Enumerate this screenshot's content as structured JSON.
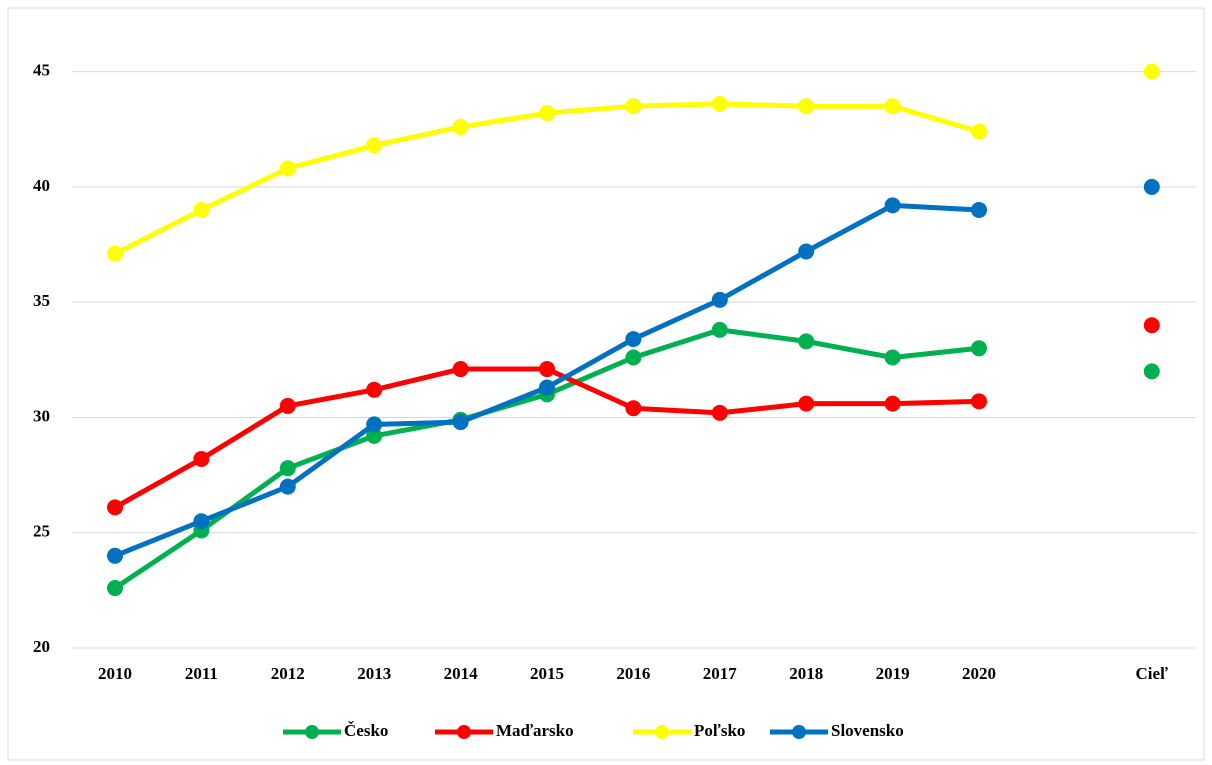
{
  "chart_data": {
    "type": "line",
    "categories": [
      "2010",
      "2011",
      "2012",
      "2013",
      "2014",
      "2015",
      "2016",
      "2017",
      "2018",
      "2019",
      "2020",
      null,
      "Cieľ"
    ],
    "series": [
      {
        "name": "Česko",
        "color": "#00b050",
        "values": [
          22.6,
          25.1,
          27.8,
          29.2,
          29.9,
          31.0,
          32.6,
          33.8,
          33.3,
          32.6,
          33.0,
          null,
          32.0
        ]
      },
      {
        "name": "Maďarsko",
        "color": "#ff0000",
        "values": [
          26.1,
          28.2,
          30.5,
          31.2,
          32.1,
          32.1,
          30.4,
          30.2,
          30.6,
          30.6,
          30.7,
          null,
          34.0
        ]
      },
      {
        "name": "Poľsko",
        "color": "#ffff00",
        "values": [
          37.1,
          39.0,
          40.8,
          41.8,
          42.6,
          43.2,
          43.5,
          43.6,
          43.5,
          43.5,
          42.4,
          null,
          45.0
        ]
      },
      {
        "name": "Slovensko",
        "color": "#0070c0",
        "values": [
          24.0,
          25.5,
          27.0,
          29.7,
          29.8,
          31.3,
          33.4,
          35.1,
          37.2,
          39.2,
          39.0,
          null,
          40.0
        ]
      }
    ],
    "ylim": [
      20,
      47.5
    ],
    "yticks": [
      20,
      25,
      30,
      35,
      40,
      45
    ],
    "grid": true,
    "legend": "bottom"
  }
}
